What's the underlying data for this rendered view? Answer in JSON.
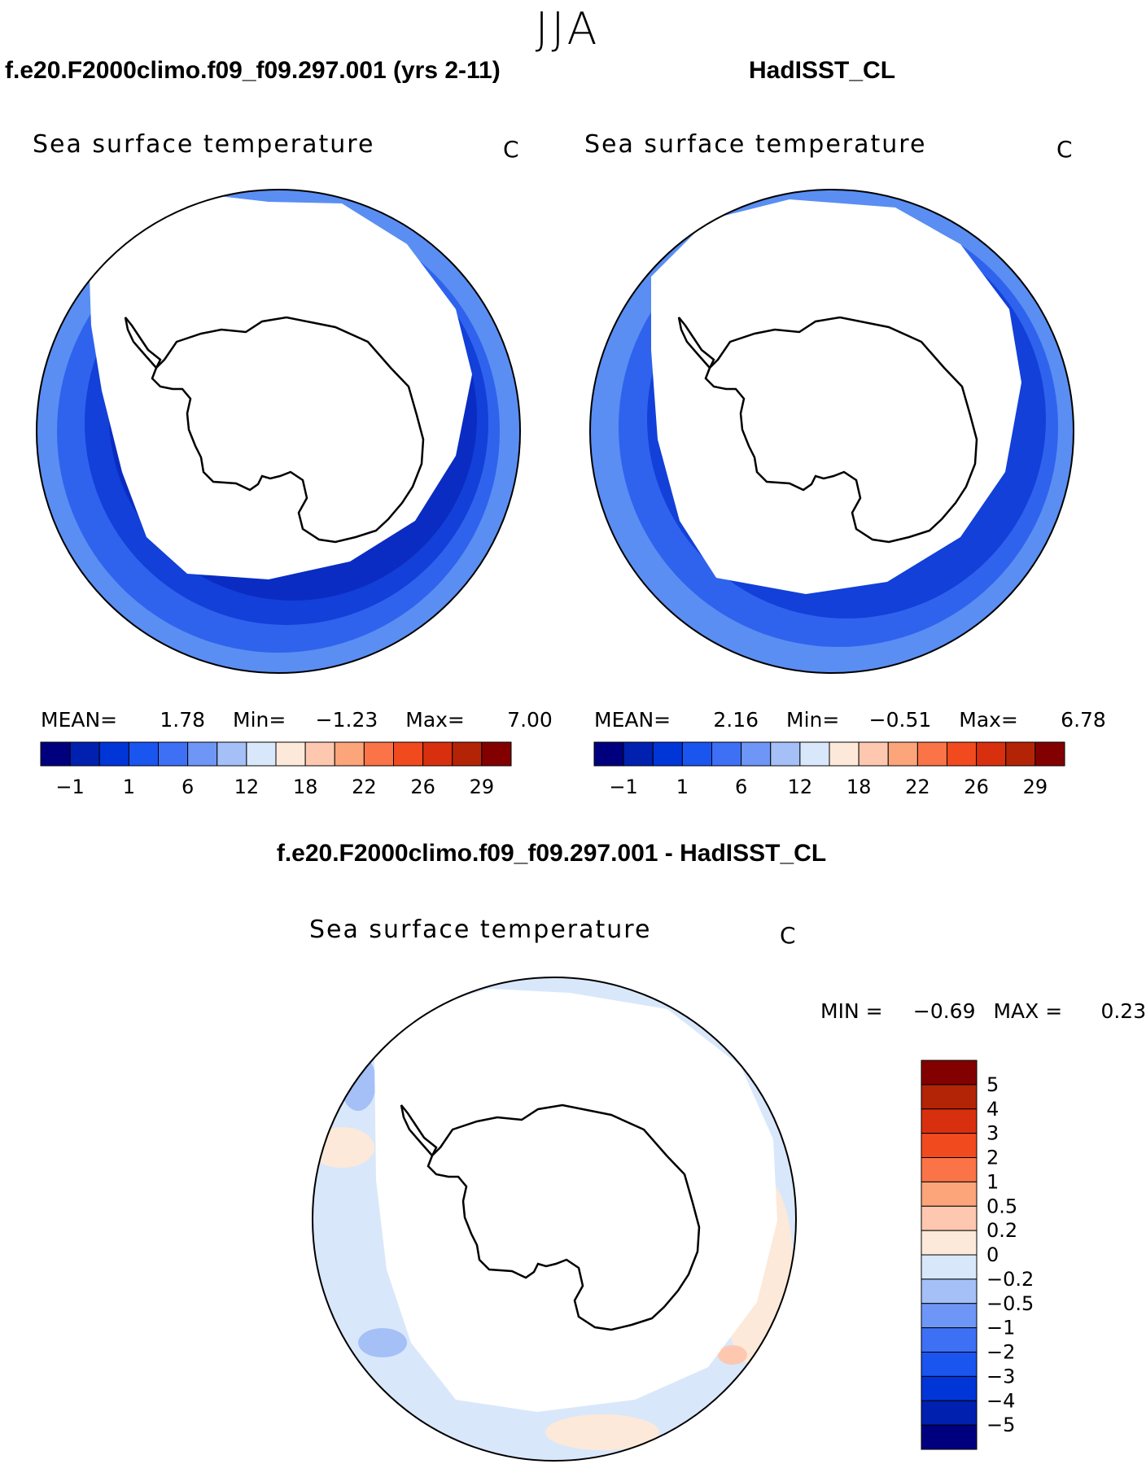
{
  "header": {
    "season": "JJA"
  },
  "panels": [
    {
      "case": "f.e20.F2000climo.f09_f09.297.001 (yrs 2-11)",
      "title": "Sea surface temperature",
      "units": "C",
      "stats": {
        "mean_label": "MEAN=",
        "mean": "1.78",
        "min_label": "Min=",
        "min": "−1.23",
        "max_label": "Max=",
        "max": "7.00"
      }
    },
    {
      "case": "HadISST_CL",
      "title": "Sea surface temperature",
      "units": "C",
      "stats": {
        "mean_label": "MEAN=",
        "mean": "2.16",
        "min_label": "Min=",
        "min": "−0.51",
        "max_label": "Max=",
        "max": "6.78"
      }
    }
  ],
  "diff": {
    "case": "f.e20.F2000climo.f09_f09.297.001 - HadISST_CL",
    "title": "Sea surface temperature",
    "units": "C",
    "stats": {
      "min_label": "MIN =",
      "min": "−0.69",
      "max_label": "MAX =",
      "max": "0.23"
    }
  },
  "colorbar_abs": {
    "colors": [
      "#00007f",
      "#0020b0",
      "#0035d8",
      "#1a55f0",
      "#3d70f5",
      "#6e96f6",
      "#a5bff7",
      "#d9e7fb",
      "#fde9d9",
      "#fdc8af",
      "#fca47a",
      "#fa7448",
      "#f24a1f",
      "#d8300e",
      "#b32407",
      "#820000"
    ],
    "tick_labels": [
      "−1",
      "1",
      "6",
      "12",
      "18",
      "22",
      "26",
      "29"
    ]
  },
  "colorbar_diff": {
    "colors": [
      "#820000",
      "#b32407",
      "#d8300e",
      "#f24a1f",
      "#fa7448",
      "#fca47a",
      "#fdc8af",
      "#fde9d9",
      "#d9e7fb",
      "#a5bff7",
      "#6e96f6",
      "#3d70f5",
      "#1a55f0",
      "#0035d8",
      "#0020b0",
      "#00007f"
    ],
    "tick_labels": [
      "5",
      "4",
      "3",
      "2",
      "1",
      "0.5",
      "0.2",
      "0",
      "−0.2",
      "−0.5",
      "−1",
      "−2",
      "−3",
      "−4",
      "−5"
    ]
  },
  "map_colors": {
    "ocean_warm": "#5a8ef2",
    "ocean_mid": "#2f63ee",
    "ocean_cold": "#1240d8",
    "ocean_coldest": "#0a2cc2",
    "diff_neg": "#d9e7fb",
    "diff_neg2": "#a5bff7",
    "diff_pos": "#fde9d9",
    "diff_pos2": "#fdc8af",
    "land": "#ffffff",
    "outline": "#000000"
  }
}
